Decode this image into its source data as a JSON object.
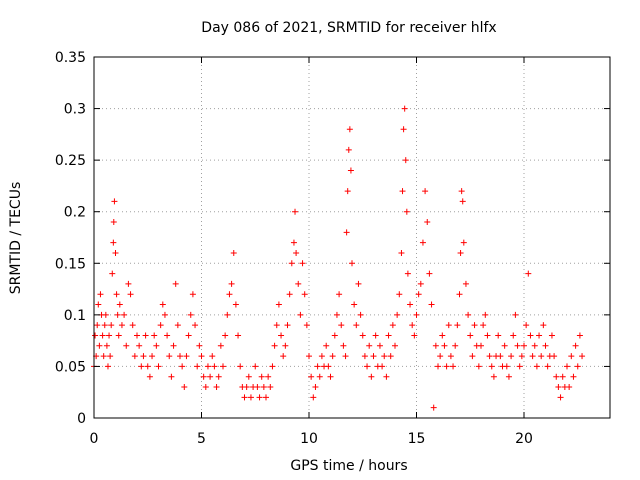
{
  "chart_data": {
    "type": "scatter",
    "title": "Day 086 of 2021, SRMTID for receiver hlfx",
    "xlabel": "GPS time / hours",
    "ylabel": "SRMTID / TECUs",
    "xlim": [
      0,
      24
    ],
    "ylim": [
      0,
      0.35
    ],
    "x_ticks": [
      0,
      5,
      10,
      15,
      20
    ],
    "x_tick_labels": [
      "0",
      "5",
      "10",
      "15",
      "20"
    ],
    "y_ticks": [
      0,
      0.05,
      0.1,
      0.15,
      0.2,
      0.25,
      0.3,
      0.35
    ],
    "y_tick_labels": [
      "0",
      "0.05",
      "0.1",
      "0.15",
      "0.2",
      "0.25",
      "0.3",
      "0.35"
    ],
    "grid": true,
    "marker": "+",
    "color": "#ff0000",
    "series": [
      {
        "name": "SRMTID",
        "points": [
          [
            0.0,
            0.05
          ],
          [
            0.05,
            0.08
          ],
          [
            0.1,
            0.06
          ],
          [
            0.15,
            0.09
          ],
          [
            0.2,
            0.11
          ],
          [
            0.25,
            0.07
          ],
          [
            0.3,
            0.12
          ],
          [
            0.35,
            0.1
          ],
          [
            0.4,
            0.08
          ],
          [
            0.45,
            0.06
          ],
          [
            0.5,
            0.09
          ],
          [
            0.55,
            0.1
          ],
          [
            0.6,
            0.07
          ],
          [
            0.65,
            0.05
          ],
          [
            0.7,
            0.08
          ],
          [
            0.75,
            0.06
          ],
          [
            0.8,
            0.09
          ],
          [
            0.85,
            0.14
          ],
          [
            0.9,
            0.17
          ],
          [
            0.92,
            0.19
          ],
          [
            0.95,
            0.21
          ],
          [
            1.0,
            0.16
          ],
          [
            1.05,
            0.12
          ],
          [
            1.1,
            0.1
          ],
          [
            1.15,
            0.08
          ],
          [
            1.2,
            0.11
          ],
          [
            1.3,
            0.09
          ],
          [
            1.4,
            0.1
          ],
          [
            1.5,
            0.07
          ],
          [
            1.6,
            0.13
          ],
          [
            1.7,
            0.12
          ],
          [
            1.8,
            0.09
          ],
          [
            1.9,
            0.06
          ],
          [
            2.0,
            0.08
          ],
          [
            2.1,
            0.07
          ],
          [
            2.2,
            0.05
          ],
          [
            2.3,
            0.06
          ],
          [
            2.4,
            0.08
          ],
          [
            2.5,
            0.05
          ],
          [
            2.6,
            0.04
          ],
          [
            2.7,
            0.06
          ],
          [
            2.8,
            0.08
          ],
          [
            2.9,
            0.07
          ],
          [
            3.0,
            0.05
          ],
          [
            3.1,
            0.09
          ],
          [
            3.2,
            0.11
          ],
          [
            3.3,
            0.1
          ],
          [
            3.4,
            0.08
          ],
          [
            3.5,
            0.06
          ],
          [
            3.6,
            0.04
          ],
          [
            3.7,
            0.07
          ],
          [
            3.8,
            0.13
          ],
          [
            3.9,
            0.09
          ],
          [
            4.0,
            0.06
          ],
          [
            4.1,
            0.05
          ],
          [
            4.2,
            0.03
          ],
          [
            4.3,
            0.06
          ],
          [
            4.4,
            0.08
          ],
          [
            4.5,
            0.1
          ],
          [
            4.6,
            0.12
          ],
          [
            4.7,
            0.09
          ],
          [
            4.8,
            0.05
          ],
          [
            4.9,
            0.07
          ],
          [
            5.0,
            0.06
          ],
          [
            5.1,
            0.04
          ],
          [
            5.2,
            0.03
          ],
          [
            5.3,
            0.05
          ],
          [
            5.4,
            0.04
          ],
          [
            5.5,
            0.06
          ],
          [
            5.6,
            0.05
          ],
          [
            5.7,
            0.03
          ],
          [
            5.8,
            0.04
          ],
          [
            5.9,
            0.07
          ],
          [
            6.0,
            0.05
          ],
          [
            6.1,
            0.08
          ],
          [
            6.2,
            0.1
          ],
          [
            6.3,
            0.12
          ],
          [
            6.4,
            0.13
          ],
          [
            6.5,
            0.16
          ],
          [
            6.6,
            0.11
          ],
          [
            6.7,
            0.08
          ],
          [
            6.8,
            0.05
          ],
          [
            6.9,
            0.03
          ],
          [
            7.0,
            0.02
          ],
          [
            7.1,
            0.03
          ],
          [
            7.2,
            0.04
          ],
          [
            7.3,
            0.02
          ],
          [
            7.4,
            0.03
          ],
          [
            7.5,
            0.05
          ],
          [
            7.6,
            0.03
          ],
          [
            7.7,
            0.02
          ],
          [
            7.8,
            0.04
          ],
          [
            7.9,
            0.03
          ],
          [
            8.0,
            0.02
          ],
          [
            8.1,
            0.04
          ],
          [
            8.2,
            0.03
          ],
          [
            8.3,
            0.05
          ],
          [
            8.4,
            0.07
          ],
          [
            8.5,
            0.09
          ],
          [
            8.6,
            0.11
          ],
          [
            8.7,
            0.08
          ],
          [
            8.8,
            0.06
          ],
          [
            8.9,
            0.07
          ],
          [
            9.0,
            0.09
          ],
          [
            9.1,
            0.12
          ],
          [
            9.2,
            0.15
          ],
          [
            9.3,
            0.17
          ],
          [
            9.35,
            0.2
          ],
          [
            9.4,
            0.16
          ],
          [
            9.5,
            0.13
          ],
          [
            9.6,
            0.1
          ],
          [
            9.7,
            0.15
          ],
          [
            9.8,
            0.12
          ],
          [
            9.9,
            0.09
          ],
          [
            10.0,
            0.06
          ],
          [
            10.1,
            0.04
          ],
          [
            10.2,
            0.02
          ],
          [
            10.3,
            0.03
          ],
          [
            10.4,
            0.05
          ],
          [
            10.5,
            0.04
          ],
          [
            10.6,
            0.06
          ],
          [
            10.7,
            0.05
          ],
          [
            10.8,
            0.07
          ],
          [
            10.9,
            0.05
          ],
          [
            11.0,
            0.04
          ],
          [
            11.1,
            0.06
          ],
          [
            11.2,
            0.08
          ],
          [
            11.3,
            0.1
          ],
          [
            11.4,
            0.12
          ],
          [
            11.5,
            0.09
          ],
          [
            11.6,
            0.07
          ],
          [
            11.7,
            0.06
          ],
          [
            11.75,
            0.18
          ],
          [
            11.8,
            0.22
          ],
          [
            11.85,
            0.26
          ],
          [
            11.9,
            0.28
          ],
          [
            11.95,
            0.24
          ],
          [
            12.0,
            0.15
          ],
          [
            12.1,
            0.11
          ],
          [
            12.2,
            0.09
          ],
          [
            12.3,
            0.13
          ],
          [
            12.4,
            0.1
          ],
          [
            12.5,
            0.08
          ],
          [
            12.6,
            0.06
          ],
          [
            12.7,
            0.05
          ],
          [
            12.8,
            0.07
          ],
          [
            12.9,
            0.04
          ],
          [
            13.0,
            0.06
          ],
          [
            13.1,
            0.08
          ],
          [
            13.2,
            0.05
          ],
          [
            13.3,
            0.07
          ],
          [
            13.4,
            0.05
          ],
          [
            13.5,
            0.06
          ],
          [
            13.6,
            0.04
          ],
          [
            13.7,
            0.08
          ],
          [
            13.8,
            0.06
          ],
          [
            13.9,
            0.09
          ],
          [
            14.0,
            0.07
          ],
          [
            14.1,
            0.1
          ],
          [
            14.2,
            0.12
          ],
          [
            14.3,
            0.16
          ],
          [
            14.35,
            0.22
          ],
          [
            14.4,
            0.28
          ],
          [
            14.45,
            0.3
          ],
          [
            14.5,
            0.25
          ],
          [
            14.55,
            0.2
          ],
          [
            14.6,
            0.14
          ],
          [
            14.7,
            0.11
          ],
          [
            14.8,
            0.09
          ],
          [
            14.9,
            0.08
          ],
          [
            15.0,
            0.1
          ],
          [
            15.1,
            0.12
          ],
          [
            15.2,
            0.13
          ],
          [
            15.3,
            0.17
          ],
          [
            15.4,
            0.22
          ],
          [
            15.5,
            0.19
          ],
          [
            15.6,
            0.14
          ],
          [
            15.7,
            0.11
          ],
          [
            15.8,
            0.01
          ],
          [
            15.9,
            0.07
          ],
          [
            16.0,
            0.05
          ],
          [
            16.1,
            0.06
          ],
          [
            16.2,
            0.08
          ],
          [
            16.3,
            0.07
          ],
          [
            16.4,
            0.05
          ],
          [
            16.5,
            0.09
          ],
          [
            16.6,
            0.06
          ],
          [
            16.7,
            0.05
          ],
          [
            16.8,
            0.07
          ],
          [
            16.9,
            0.09
          ],
          [
            17.0,
            0.12
          ],
          [
            17.05,
            0.16
          ],
          [
            17.1,
            0.22
          ],
          [
            17.15,
            0.21
          ],
          [
            17.2,
            0.17
          ],
          [
            17.3,
            0.13
          ],
          [
            17.4,
            0.1
          ],
          [
            17.5,
            0.08
          ],
          [
            17.6,
            0.06
          ],
          [
            17.7,
            0.09
          ],
          [
            17.8,
            0.07
          ],
          [
            17.9,
            0.05
          ],
          [
            18.0,
            0.07
          ],
          [
            18.1,
            0.09
          ],
          [
            18.2,
            0.1
          ],
          [
            18.3,
            0.08
          ],
          [
            18.4,
            0.06
          ],
          [
            18.5,
            0.05
          ],
          [
            18.6,
            0.04
          ],
          [
            18.7,
            0.06
          ],
          [
            18.8,
            0.08
          ],
          [
            18.9,
            0.06
          ],
          [
            19.0,
            0.05
          ],
          [
            19.1,
            0.07
          ],
          [
            19.2,
            0.05
          ],
          [
            19.3,
            0.04
          ],
          [
            19.4,
            0.06
          ],
          [
            19.5,
            0.08
          ],
          [
            19.6,
            0.1
          ],
          [
            19.7,
            0.07
          ],
          [
            19.8,
            0.05
          ],
          [
            19.9,
            0.06
          ],
          [
            20.0,
            0.07
          ],
          [
            20.1,
            0.09
          ],
          [
            20.2,
            0.14
          ],
          [
            20.3,
            0.08
          ],
          [
            20.4,
            0.06
          ],
          [
            20.5,
            0.07
          ],
          [
            20.6,
            0.05
          ],
          [
            20.7,
            0.08
          ],
          [
            20.8,
            0.06
          ],
          [
            20.9,
            0.09
          ],
          [
            21.0,
            0.07
          ],
          [
            21.1,
            0.05
          ],
          [
            21.2,
            0.06
          ],
          [
            21.3,
            0.08
          ],
          [
            21.4,
            0.06
          ],
          [
            21.5,
            0.04
          ],
          [
            21.6,
            0.03
          ],
          [
            21.7,
            0.02
          ],
          [
            21.8,
            0.04
          ],
          [
            21.9,
            0.03
          ],
          [
            22.0,
            0.05
          ],
          [
            22.1,
            0.03
          ],
          [
            22.2,
            0.06
          ],
          [
            22.3,
            0.04
          ],
          [
            22.4,
            0.07
          ],
          [
            22.5,
            0.05
          ],
          [
            22.6,
            0.08
          ],
          [
            22.7,
            0.06
          ]
        ]
      }
    ]
  }
}
